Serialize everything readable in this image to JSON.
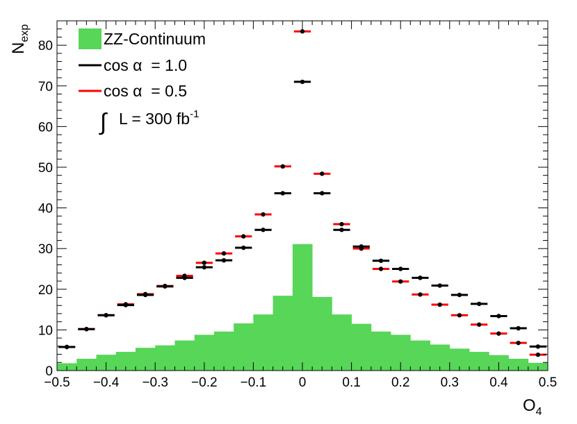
{
  "chart_data": {
    "type": "histogram",
    "xlabel": "O",
    "xlabel_sub": "4",
    "ylabel": "N",
    "ylabel_sub": "exp",
    "xlim": [
      -0.5,
      0.5
    ],
    "ylim": [
      0,
      86
    ],
    "x_ticks": [
      -0.5,
      -0.4,
      -0.3,
      -0.2,
      -0.1,
      0,
      0.1,
      0.2,
      0.3,
      0.4,
      0.5
    ],
    "x_tick_labels": [
      "−0.5",
      "−0.4",
      "−0.3",
      "−0.2",
      "−0.1",
      "0",
      "0.1",
      "0.2",
      "0.3",
      "0.4",
      "0.5"
    ],
    "y_ticks": [
      0,
      10,
      20,
      30,
      40,
      50,
      60,
      70,
      80
    ],
    "y_tick_labels": [
      "0",
      "10",
      "20",
      "30",
      "40",
      "50",
      "60",
      "70",
      "80"
    ],
    "bin_edges": [
      -0.5,
      -0.46,
      -0.42,
      -0.38,
      -0.34,
      -0.3,
      -0.26,
      -0.22,
      -0.18,
      -0.14,
      -0.1,
      -0.06,
      -0.02,
      0.02,
      0.06,
      0.1,
      0.14,
      0.18,
      0.22,
      0.26,
      0.3,
      0.34,
      0.38,
      0.42,
      0.46,
      0.5
    ],
    "legend_position": "top-left",
    "series": [
      {
        "name": "ZZ-Continuum",
        "style": "filled-histogram",
        "color": "#57d657",
        "values": [
          1.8,
          2.9,
          3.9,
          4.6,
          5.6,
          6.2,
          7.4,
          8.8,
          9.6,
          11.6,
          13.8,
          18.4,
          31.1,
          18.1,
          13.8,
          11.5,
          9.6,
          8.8,
          7.4,
          6.4,
          5.4,
          4.6,
          3.8,
          2.9,
          1.9
        ]
      },
      {
        "name": "cos α  = 1.0",
        "style": "markers-with-bin-error",
        "color": "#000000",
        "values": [
          5.8,
          10.2,
          13.6,
          16.1,
          18.6,
          20.7,
          22.8,
          25.4,
          27.1,
          30.2,
          34.6,
          43.6,
          71.0,
          43.6,
          34.6,
          30.5,
          27.0,
          25.0,
          22.8,
          20.9,
          18.6,
          16.4,
          13.4,
          10.4,
          5.9
        ]
      },
      {
        "name": "cos α  = 0.5",
        "style": "markers-with-bin-error",
        "color": "#ff0000",
        "values": [
          5.8,
          10.2,
          13.6,
          16.3,
          18.8,
          20.8,
          23.3,
          26.5,
          28.8,
          33.0,
          38.4,
          50.2,
          83.4,
          48.4,
          36.0,
          30.0,
          25.0,
          21.9,
          18.7,
          16.2,
          13.6,
          11.3,
          9.1,
          6.8,
          3.9
        ]
      }
    ],
    "annotation": {
      "integral_symbol": "∫",
      "text": "L = 300 fb",
      "superscript": "-1"
    }
  }
}
